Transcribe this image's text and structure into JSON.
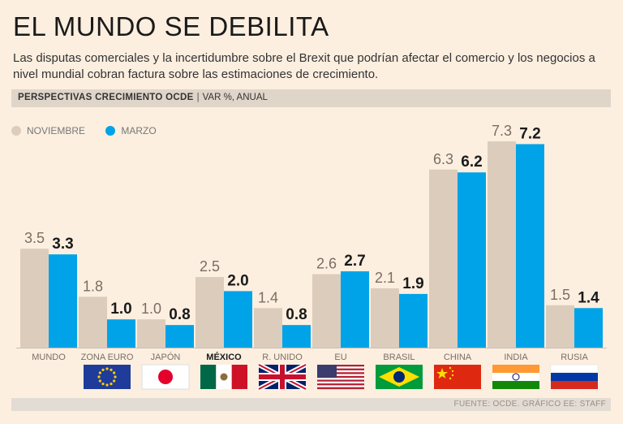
{
  "header": {
    "title": "EL MUNDO SE DEBILITA",
    "subtitle": "Las disputas comerciales y la incertidumbre sobre el Brexit que podrían afectar el comercio y los negocios a nivel mundial cobran factura sobre las estimaciones de crecimiento."
  },
  "band": {
    "label_bold": "PERSPECTIVAS CRECIMIENTO OCDE",
    "label_rest": "VAR %, ANUAL"
  },
  "legend": {
    "nov": "NOVIEMBRE",
    "mar": "MARZO"
  },
  "colors": {
    "nov": "#dcccbc",
    "mar": "#00a3e8",
    "background": "#fcefe0"
  },
  "footer": {
    "source": "FUENTE: OCDE. GRÁFICO EE: STAFF"
  },
  "chart_data": {
    "type": "bar",
    "title": "PERSPECTIVAS CRECIMIENTO OCDE",
    "ylabel": "VAR %, ANUAL",
    "ylim": [
      0,
      7.5
    ],
    "categories": [
      "MUNDO",
      "ZONA EURO",
      "JAPÓN",
      "MÉXICO",
      "R. UNIDO",
      "EU",
      "BRASIL",
      "CHINA",
      "INDIA",
      "RUSIA"
    ],
    "highlight_category": "MÉXICO",
    "series": [
      {
        "name": "NOVIEMBRE",
        "values": [
          3.5,
          1.8,
          1.0,
          2.5,
          1.4,
          2.6,
          2.1,
          6.3,
          7.3,
          1.5
        ],
        "labels": [
          "3.5",
          "1.8",
          "1.0",
          "2.5",
          "1.4",
          "2.6",
          "2.1",
          "6.3",
          "7.3",
          "1.5"
        ]
      },
      {
        "name": "MARZO",
        "values": [
          3.3,
          1.0,
          0.8,
          2.0,
          0.8,
          2.7,
          1.9,
          6.2,
          7.2,
          1.4
        ],
        "labels": [
          "3.3",
          "1.0",
          "0.8",
          "2.0",
          "0.8",
          "2.7",
          "1.9",
          "6.2",
          "7.2",
          "1.4"
        ]
      }
    ],
    "flags": [
      "",
      "eu-flag",
      "japan-flag",
      "mexico-flag",
      "uk-flag",
      "usa-flag",
      "brazil-flag",
      "china-flag",
      "india-flag",
      "russia-flag"
    ]
  }
}
